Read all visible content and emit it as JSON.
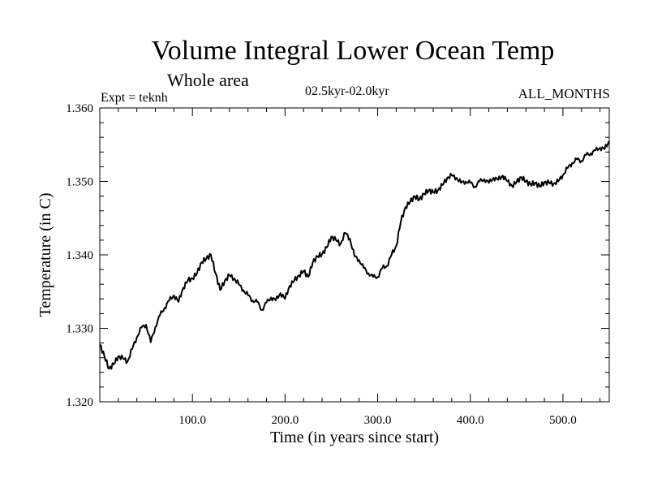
{
  "chart_data": {
    "type": "line",
    "title": "Volume Integral Lower Ocean Temp",
    "subtitle": "Whole area",
    "annotations": {
      "experiment": "Expt = teknh",
      "period": "02.5kyr-02.0kyr",
      "months": "ALL_MONTHS"
    },
    "xlabel": "Time (in years since start)",
    "ylabel": "Temperature (in C)",
    "xlim": [
      0,
      550
    ],
    "ylim": [
      1.32,
      1.36
    ],
    "xticks": [
      100,
      200,
      300,
      400,
      500
    ],
    "xtick_labels": [
      "100.0",
      "200.0",
      "300.0",
      "400.0",
      "500.0"
    ],
    "yticks": [
      1.32,
      1.33,
      1.34,
      1.35,
      1.36
    ],
    "ytick_labels": [
      "1.320",
      "1.330",
      "1.340",
      "1.350",
      "1.360"
    ],
    "series": [
      {
        "name": "Volume Integral Lower Ocean Temp",
        "color": "#000000",
        "x": [
          0,
          5,
          10,
          15,
          20,
          25,
          30,
          35,
          40,
          45,
          50,
          55,
          60,
          65,
          70,
          75,
          80,
          85,
          90,
          95,
          100,
          105,
          110,
          115,
          120,
          125,
          130,
          135,
          140,
          145,
          150,
          155,
          160,
          165,
          170,
          175,
          180,
          185,
          190,
          195,
          200,
          205,
          210,
          215,
          220,
          225,
          230,
          235,
          240,
          245,
          250,
          255,
          260,
          265,
          270,
          275,
          280,
          285,
          290,
          295,
          300,
          305,
          310,
          315,
          320,
          325,
          330,
          335,
          340,
          345,
          350,
          355,
          360,
          365,
          370,
          375,
          380,
          385,
          390,
          395,
          400,
          405,
          410,
          415,
          420,
          425,
          430,
          435,
          440,
          445,
          450,
          455,
          460,
          465,
          470,
          475,
          480,
          485,
          490,
          495,
          500,
          505,
          510,
          515,
          520,
          525,
          530,
          535,
          540,
          545,
          550
        ],
        "y": [
          1.3278,
          1.3262,
          1.3245,
          1.3251,
          1.3262,
          1.3259,
          1.3255,
          1.3272,
          1.3288,
          1.3301,
          1.3305,
          1.3281,
          1.3302,
          1.3318,
          1.3328,
          1.3338,
          1.3345,
          1.3336,
          1.3355,
          1.3365,
          1.3368,
          1.3375,
          1.339,
          1.3395,
          1.34,
          1.3375,
          1.3352,
          1.3365,
          1.3372,
          1.3368,
          1.336,
          1.3352,
          1.3345,
          1.3338,
          1.3336,
          1.3325,
          1.3335,
          1.3342,
          1.3338,
          1.3348,
          1.334,
          1.3358,
          1.3365,
          1.3372,
          1.3378,
          1.337,
          1.339,
          1.3398,
          1.3401,
          1.341,
          1.3425,
          1.342,
          1.3415,
          1.343,
          1.3422,
          1.3398,
          1.3393,
          1.3382,
          1.3375,
          1.337,
          1.337,
          1.3382,
          1.3385,
          1.34,
          1.3412,
          1.3445,
          1.3465,
          1.3472,
          1.348,
          1.3475,
          1.3483,
          1.3488,
          1.3485,
          1.3488,
          1.3495,
          1.3505,
          1.3508,
          1.3505,
          1.3498,
          1.35,
          1.3498,
          1.3493,
          1.35,
          1.3503,
          1.3498,
          1.3505,
          1.3502,
          1.3508,
          1.35,
          1.3494,
          1.3499,
          1.3506,
          1.35,
          1.3496,
          1.3498,
          1.3493,
          1.3499,
          1.3498,
          1.3497,
          1.35,
          1.3509,
          1.3518,
          1.3525,
          1.353,
          1.3528,
          1.3536,
          1.3538,
          1.3542,
          1.3546,
          1.3544,
          1.3555
        ]
      }
    ]
  }
}
